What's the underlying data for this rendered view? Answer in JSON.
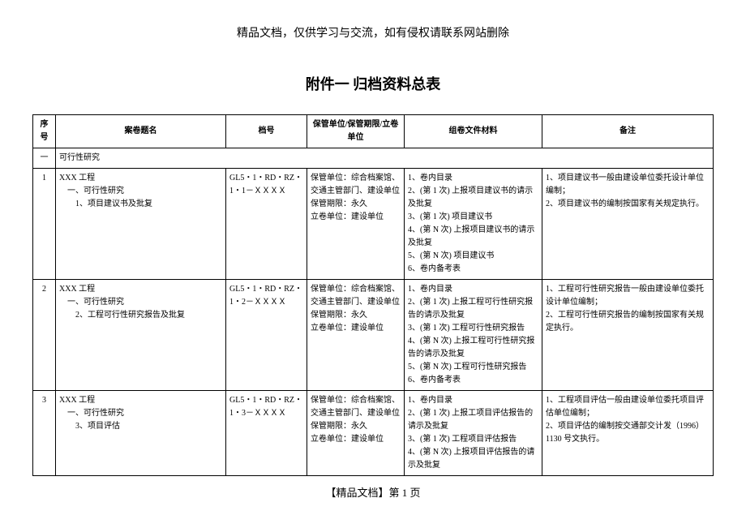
{
  "notice": "精品文档，仅供学习与交流，如有侵权请联系网站删除",
  "title": "附件一 归档资料总表",
  "footer": "【精品文档】第 1 页",
  "headers": {
    "seq": "序号",
    "name": "案卷题名",
    "code": "档号",
    "unit": "保管单位/保管期限/立卷单位",
    "materials": "组卷文件材料",
    "remarks": "备注"
  },
  "section": {
    "seq": "一",
    "name": "可行性研究"
  },
  "rows": [
    {
      "seq": "1",
      "name_lines": [
        "XXX 工程",
        "一、可行性研究",
        "1、项目建议书及批复"
      ],
      "code_lines": [
        "GL5・1・RD・RZ・",
        "1・1－ＸＸＸＸ"
      ],
      "unit_lines": [
        "保管单位：综合档案馆、交通主管部门、建设单位",
        "保管期限：永久",
        "立卷单位：建设单位"
      ],
      "material_lines": [
        "1、卷内目录",
        "2、(第 1 次) 上报项目建议书的请示及批复",
        "3、(第 1 次) 项目建议书",
        "4、(第 N 次) 上报项目建议书的请示及批复",
        "5、(第 N 次) 项目建议书",
        "6、卷内备考表"
      ],
      "remark_lines": [
        "1、项目建议书一般由建设单位委托设计单位编制；",
        "2、项目建议书的编制按国家有关规定执行。"
      ]
    },
    {
      "seq": "2",
      "name_lines": [
        "XXX 工程",
        "一、可行性研究",
        "2、工程可行性研究报告及批复"
      ],
      "code_lines": [
        "GL5・1・RD・RZ・",
        "1・2－ＸＸＸＸ"
      ],
      "unit_lines": [
        "保管单位：综合档案馆、交通主管部门、建设单位",
        "保管期限：永久",
        "立卷单位：建设单位"
      ],
      "material_lines": [
        "1、卷内目录",
        "2、(第 1 次) 上报工程可行性研究报告的请示及批复",
        "3、(第 1 次) 工程可行性研究报告",
        "4、(第 N 次) 上报工程可行性研究报告的请示及批复",
        "5、(第 N 次) 工程可行性研究报告",
        "6、卷内备考表"
      ],
      "remark_lines": [
        "1、工程可行性研究报告一般由建设单位委托设计单位编制；",
        "2、工程可行性研究报告的编制按国家有关规定执行。"
      ]
    },
    {
      "seq": "3",
      "name_lines": [
        "XXX 工程",
        "一、可行性研究",
        "3、项目评估"
      ],
      "code_lines": [
        "GL5・1・RD・RZ・",
        "1・3－ＸＸＸＸ"
      ],
      "unit_lines": [
        "保管单位：综合档案馆、交通主管部门、建设单位",
        "保管期限：永久",
        "立卷单位：建设单位"
      ],
      "material_lines": [
        "1、卷内目录",
        "2、(第 1 次) 上报工项目评估报告的请示及批复",
        "3、(第 1 次) 工程项目评估报告",
        "4、(第 N 次) 上报项目评估报告的请示及批复"
      ],
      "remark_lines": [
        "1、工程项目评估一般由建设单位委托项目评估单位编制；",
        "2、项目评估的编制按交通部交计发（1996）1130 号文执行。"
      ]
    }
  ]
}
